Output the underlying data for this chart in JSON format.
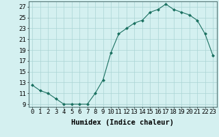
{
  "x": [
    0,
    1,
    2,
    3,
    4,
    5,
    6,
    7,
    8,
    9,
    10,
    11,
    12,
    13,
    14,
    15,
    16,
    17,
    18,
    19,
    20,
    21,
    22,
    23
  ],
  "y": [
    12.5,
    11.5,
    11.0,
    10.0,
    9.0,
    9.0,
    9.0,
    9.0,
    11.0,
    13.5,
    18.5,
    22.0,
    23.0,
    24.0,
    24.5,
    26.0,
    26.5,
    27.5,
    26.5,
    26.0,
    25.5,
    24.5,
    22.0,
    18.0
  ],
  "xlabel": "Humidex (Indice chaleur)",
  "ylim": [
    8.5,
    28.0
  ],
  "yticks": [
    9,
    11,
    13,
    15,
    17,
    19,
    21,
    23,
    25,
    27
  ],
  "xticks": [
    0,
    1,
    2,
    3,
    4,
    5,
    6,
    7,
    8,
    9,
    10,
    11,
    12,
    13,
    14,
    15,
    16,
    17,
    18,
    19,
    20,
    21,
    22,
    23
  ],
  "line_color": "#1a7060",
  "marker_color": "#1a7060",
  "bg_color": "#d4f0f0",
  "grid_color": "#aad4d4",
  "tick_label_fontsize": 6.5,
  "xlabel_fontsize": 7.5
}
